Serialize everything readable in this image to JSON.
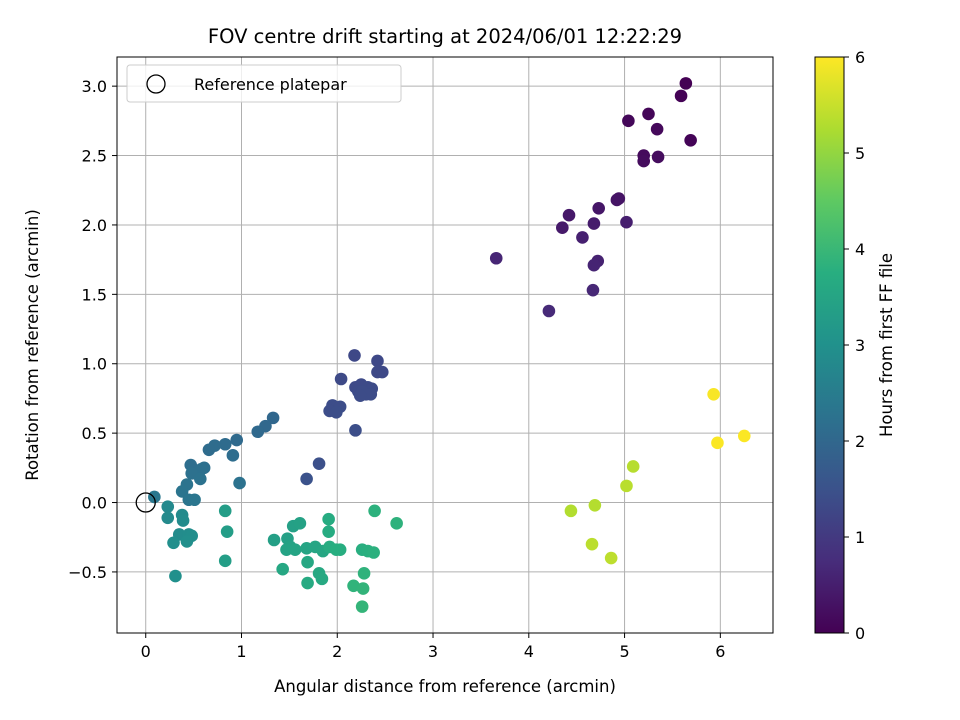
{
  "chart_data": {
    "type": "scatter",
    "title": "FOV centre drift starting at 2024/06/01 12:22:29",
    "xlabel": "Angular distance from reference (arcmin)",
    "ylabel": "Rotation from reference (arcmin)",
    "xlim": [
      -0.3,
      6.55
    ],
    "ylim": [
      -0.94,
      3.21
    ],
    "xticks": [
      0,
      1,
      2,
      3,
      4,
      5,
      6
    ],
    "yticks": [
      -0.5,
      0.0,
      0.5,
      1.0,
      1.5,
      2.0,
      2.5,
      3.0
    ],
    "xtick_labels": [
      "0",
      "1",
      "2",
      "3",
      "4",
      "5",
      "6"
    ],
    "ytick_labels": [
      "−0.5",
      "0.0",
      "0.5",
      "1.0",
      "1.5",
      "2.0",
      "2.5",
      "3.0"
    ],
    "grid": true,
    "legend": {
      "placement": "top-left",
      "entries": [
        "Reference platepar"
      ]
    },
    "reference_point": {
      "x": 0.0,
      "y": 0.0
    },
    "colorbar": {
      "label": "Hours from first FF file",
      "colormap": "viridis",
      "range": [
        0,
        6
      ],
      "ticks": [
        0,
        1,
        2,
        3,
        4,
        5,
        6
      ],
      "tick_labels": [
        "0",
        "1",
        "2",
        "3",
        "4",
        "5",
        "6"
      ]
    },
    "points": [
      {
        "x": 5.64,
        "y": 3.02,
        "c": 0.0
      },
      {
        "x": 5.59,
        "y": 2.93,
        "c": 0.03
      },
      {
        "x": 5.69,
        "y": 2.61,
        "c": 0.05
      },
      {
        "x": 5.25,
        "y": 2.8,
        "c": 0.08
      },
      {
        "x": 5.04,
        "y": 2.75,
        "c": 0.1
      },
      {
        "x": 5.34,
        "y": 2.69,
        "c": 0.13
      },
      {
        "x": 5.2,
        "y": 2.5,
        "c": 0.15
      },
      {
        "x": 5.2,
        "y": 2.46,
        "c": 0.18
      },
      {
        "x": 5.35,
        "y": 2.49,
        "c": 0.2
      },
      {
        "x": 4.94,
        "y": 2.19,
        "c": 0.3
      },
      {
        "x": 4.92,
        "y": 2.18,
        "c": 0.33
      },
      {
        "x": 4.73,
        "y": 2.12,
        "c": 0.36
      },
      {
        "x": 4.42,
        "y": 2.07,
        "c": 0.4
      },
      {
        "x": 4.35,
        "y": 1.98,
        "c": 0.43
      },
      {
        "x": 4.68,
        "y": 2.01,
        "c": 0.46
      },
      {
        "x": 5.02,
        "y": 2.02,
        "c": 0.5
      },
      {
        "x": 4.56,
        "y": 1.91,
        "c": 0.53
      },
      {
        "x": 4.72,
        "y": 1.74,
        "c": 0.56
      },
      {
        "x": 4.68,
        "y": 1.71,
        "c": 0.6
      },
      {
        "x": 3.66,
        "y": 1.76,
        "c": 0.63
      },
      {
        "x": 4.67,
        "y": 1.53,
        "c": 0.66
      },
      {
        "x": 4.21,
        "y": 1.38,
        "c": 0.7
      },
      {
        "x": 2.18,
        "y": 1.06,
        "c": 1.3
      },
      {
        "x": 2.42,
        "y": 1.02,
        "c": 1.3
      },
      {
        "x": 2.42,
        "y": 0.94,
        "c": 1.32
      },
      {
        "x": 2.47,
        "y": 0.94,
        "c": 1.32
      },
      {
        "x": 2.04,
        "y": 0.89,
        "c": 1.33
      },
      {
        "x": 2.25,
        "y": 0.85,
        "c": 1.34
      },
      {
        "x": 2.19,
        "y": 0.83,
        "c": 1.34
      },
      {
        "x": 2.32,
        "y": 0.83,
        "c": 1.35
      },
      {
        "x": 2.36,
        "y": 0.82,
        "c": 1.36
      },
      {
        "x": 2.22,
        "y": 0.8,
        "c": 1.36
      },
      {
        "x": 2.26,
        "y": 0.8,
        "c": 1.37
      },
      {
        "x": 2.35,
        "y": 0.78,
        "c": 1.37
      },
      {
        "x": 2.3,
        "y": 0.78,
        "c": 1.38
      },
      {
        "x": 2.24,
        "y": 0.77,
        "c": 1.38
      },
      {
        "x": 1.95,
        "y": 0.7,
        "c": 1.39
      },
      {
        "x": 2.03,
        "y": 0.69,
        "c": 1.4
      },
      {
        "x": 1.92,
        "y": 0.66,
        "c": 1.4
      },
      {
        "x": 1.99,
        "y": 0.65,
        "c": 1.41
      },
      {
        "x": 2.19,
        "y": 0.52,
        "c": 1.42
      },
      {
        "x": 1.81,
        "y": 0.28,
        "c": 1.45
      },
      {
        "x": 1.68,
        "y": 0.17,
        "c": 1.5
      },
      {
        "x": 1.33,
        "y": 0.61,
        "c": 2.0
      },
      {
        "x": 1.25,
        "y": 0.55,
        "c": 2.02
      },
      {
        "x": 1.17,
        "y": 0.51,
        "c": 2.04
      },
      {
        "x": 0.95,
        "y": 0.45,
        "c": 2.06
      },
      {
        "x": 0.83,
        "y": 0.42,
        "c": 2.08
      },
      {
        "x": 0.72,
        "y": 0.41,
        "c": 2.1
      },
      {
        "x": 0.66,
        "y": 0.38,
        "c": 2.12
      },
      {
        "x": 0.91,
        "y": 0.34,
        "c": 2.14
      },
      {
        "x": 0.47,
        "y": 0.27,
        "c": 2.16
      },
      {
        "x": 0.61,
        "y": 0.25,
        "c": 2.18
      },
      {
        "x": 0.58,
        "y": 0.24,
        "c": 2.2
      },
      {
        "x": 0.48,
        "y": 0.21,
        "c": 2.22
      },
      {
        "x": 0.57,
        "y": 0.17,
        "c": 2.24
      },
      {
        "x": 0.98,
        "y": 0.14,
        "c": 2.26
      },
      {
        "x": 0.43,
        "y": 0.13,
        "c": 2.28
      },
      {
        "x": 0.38,
        "y": 0.08,
        "c": 2.3
      },
      {
        "x": 0.45,
        "y": 0.02,
        "c": 2.32
      },
      {
        "x": 0.51,
        "y": 0.02,
        "c": 2.34
      },
      {
        "x": 0.09,
        "y": 0.04,
        "c": 2.36
      },
      {
        "x": 0.23,
        "y": -0.03,
        "c": 2.8
      },
      {
        "x": 0.23,
        "y": -0.11,
        "c": 2.82
      },
      {
        "x": 0.38,
        "y": -0.09,
        "c": 2.84
      },
      {
        "x": 0.39,
        "y": -0.13,
        "c": 2.86
      },
      {
        "x": 0.35,
        "y": -0.23,
        "c": 2.88
      },
      {
        "x": 0.45,
        "y": -0.23,
        "c": 2.9
      },
      {
        "x": 0.48,
        "y": -0.24,
        "c": 2.92
      },
      {
        "x": 0.29,
        "y": -0.29,
        "c": 2.94
      },
      {
        "x": 0.43,
        "y": -0.28,
        "c": 2.96
      },
      {
        "x": 0.31,
        "y": -0.53,
        "c": 2.98
      },
      {
        "x": 0.83,
        "y": -0.06,
        "c": 3.3
      },
      {
        "x": 0.85,
        "y": -0.21,
        "c": 3.32
      },
      {
        "x": 0.83,
        "y": -0.42,
        "c": 3.34
      },
      {
        "x": 1.34,
        "y": -0.27,
        "c": 3.36
      },
      {
        "x": 1.48,
        "y": -0.26,
        "c": 3.38
      },
      {
        "x": 1.54,
        "y": -0.17,
        "c": 3.4
      },
      {
        "x": 1.61,
        "y": -0.15,
        "c": 3.42
      },
      {
        "x": 1.51,
        "y": -0.32,
        "c": 3.44
      },
      {
        "x": 1.47,
        "y": -0.34,
        "c": 3.46
      },
      {
        "x": 1.56,
        "y": -0.34,
        "c": 3.48
      },
      {
        "x": 1.68,
        "y": -0.33,
        "c": 3.5
      },
      {
        "x": 1.77,
        "y": -0.32,
        "c": 3.52
      },
      {
        "x": 1.85,
        "y": -0.35,
        "c": 3.54
      },
      {
        "x": 1.43,
        "y": -0.48,
        "c": 3.56
      },
      {
        "x": 1.69,
        "y": -0.43,
        "c": 3.58
      },
      {
        "x": 1.81,
        "y": -0.51,
        "c": 3.6
      },
      {
        "x": 1.84,
        "y": -0.55,
        "c": 3.62
      },
      {
        "x": 1.69,
        "y": -0.58,
        "c": 3.64
      },
      {
        "x": 1.91,
        "y": -0.12,
        "c": 3.66
      },
      {
        "x": 1.91,
        "y": -0.21,
        "c": 3.68
      },
      {
        "x": 1.92,
        "y": -0.32,
        "c": 3.7
      },
      {
        "x": 2.03,
        "y": -0.34,
        "c": 3.72
      },
      {
        "x": 1.99,
        "y": -0.34,
        "c": 3.74
      },
      {
        "x": 2.26,
        "y": -0.34,
        "c": 3.76
      },
      {
        "x": 2.32,
        "y": -0.35,
        "c": 3.78
      },
      {
        "x": 2.38,
        "y": -0.36,
        "c": 3.8
      },
      {
        "x": 2.39,
        "y": -0.06,
        "c": 3.82
      },
      {
        "x": 2.62,
        "y": -0.15,
        "c": 3.84
      },
      {
        "x": 2.28,
        "y": -0.51,
        "c": 3.86
      },
      {
        "x": 2.17,
        "y": -0.6,
        "c": 3.88
      },
      {
        "x": 2.27,
        "y": -0.62,
        "c": 3.9
      },
      {
        "x": 2.26,
        "y": -0.75,
        "c": 3.92
      },
      {
        "x": 4.44,
        "y": -0.06,
        "c": 5.3
      },
      {
        "x": 4.69,
        "y": -0.02,
        "c": 5.32
      },
      {
        "x": 5.09,
        "y": 0.26,
        "c": 5.34
      },
      {
        "x": 5.02,
        "y": 0.12,
        "c": 5.36
      },
      {
        "x": 4.66,
        "y": -0.3,
        "c": 5.38
      },
      {
        "x": 4.86,
        "y": -0.4,
        "c": 5.4
      },
      {
        "x": 5.93,
        "y": 0.78,
        "c": 5.95
      },
      {
        "x": 5.97,
        "y": 0.43,
        "c": 5.97
      },
      {
        "x": 6.25,
        "y": 0.48,
        "c": 5.98
      }
    ]
  }
}
